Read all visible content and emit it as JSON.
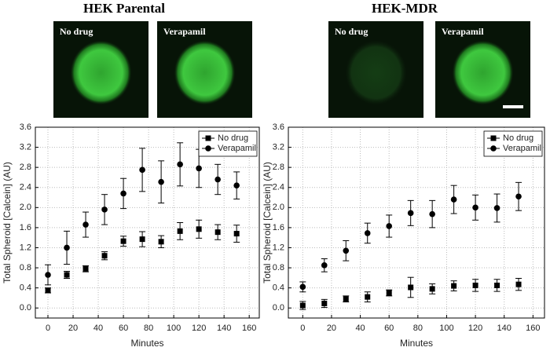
{
  "chart_data": [
    {
      "type": "line",
      "title": "HEK Parental",
      "images": [
        {
          "label": "No drug"
        },
        {
          "label": "Verapamil"
        }
      ],
      "x_label": "Minutes",
      "y_label": "Total Spheroid [Calcein] (AU)",
      "x": [
        0,
        15,
        30,
        45,
        60,
        75,
        90,
        105,
        120,
        135,
        150
      ],
      "series": [
        {
          "name": "No drug",
          "color": "#000000",
          "marker": "square",
          "values": [
            0.35,
            0.66,
            0.78,
            1.04,
            1.33,
            1.37,
            1.32,
            1.53,
            1.57,
            1.51,
            1.48
          ],
          "errors": [
            0.05,
            0.07,
            0.06,
            0.08,
            0.1,
            0.15,
            0.12,
            0.17,
            0.18,
            0.15,
            0.17
          ]
        },
        {
          "name": "Verapamil",
          "color": "#000000",
          "marker": "circle",
          "values": [
            0.66,
            1.2,
            1.66,
            1.96,
            2.28,
            2.75,
            2.51,
            2.86,
            2.78,
            2.56,
            2.44
          ],
          "errors": [
            0.2,
            0.33,
            0.25,
            0.3,
            0.3,
            0.43,
            0.42,
            0.43,
            0.38,
            0.3,
            0.27
          ]
        }
      ],
      "xlim": [
        -10,
        168
      ],
      "xticks": [
        0,
        20,
        40,
        60,
        80,
        100,
        120,
        140,
        160
      ],
      "ylim": [
        -0.2,
        3.6
      ],
      "yticks": [
        {
          "value": 0,
          "label": "0.0"
        },
        0.4,
        0.8,
        1.2,
        1.6,
        {
          "value": 2,
          "label": "2.0"
        },
        2.4,
        2.8,
        3.2,
        3.6
      ],
      "grid": true,
      "legend": "upper right"
    },
    {
      "type": "line",
      "title": "HEK-MDR",
      "images": [
        {
          "label": "No drug"
        },
        {
          "label": "Verapamil"
        }
      ],
      "x_label": "Minutes",
      "y_label": "Total Spheroid [Calcein] (AU)",
      "x": [
        0,
        15,
        30,
        45,
        60,
        75,
        90,
        105,
        120,
        135,
        150
      ],
      "series": [
        {
          "name": "No drug",
          "color": "#000000",
          "marker": "square",
          "values": [
            0.05,
            0.09,
            0.18,
            0.22,
            0.3,
            0.41,
            0.38,
            0.44,
            0.45,
            0.45,
            0.47
          ],
          "errors": [
            0.08,
            0.08,
            0.06,
            0.1,
            0.06,
            0.2,
            0.1,
            0.1,
            0.12,
            0.12,
            0.12
          ]
        },
        {
          "name": "Verapamil",
          "color": "#000000",
          "marker": "circle",
          "values": [
            0.42,
            0.85,
            1.14,
            1.49,
            1.63,
            1.89,
            1.87,
            2.16,
            2.0,
            1.99,
            2.22
          ],
          "errors": [
            0.1,
            0.13,
            0.2,
            0.2,
            0.22,
            0.25,
            0.27,
            0.28,
            0.25,
            0.28,
            0.28
          ]
        }
      ],
      "xlim": [
        -10,
        168
      ],
      "xticks": [
        0,
        20,
        40,
        60,
        80,
        100,
        120,
        140,
        160
      ],
      "ylim": [
        -0.2,
        3.6
      ],
      "yticks": [
        {
          "value": 0,
          "label": "0.0"
        },
        0.4,
        0.8,
        1.2,
        1.6,
        {
          "value": 2,
          "label": "2.0"
        },
        2.4,
        2.8,
        3.2,
        3.6
      ],
      "grid": true,
      "legend": "upper right"
    }
  ]
}
